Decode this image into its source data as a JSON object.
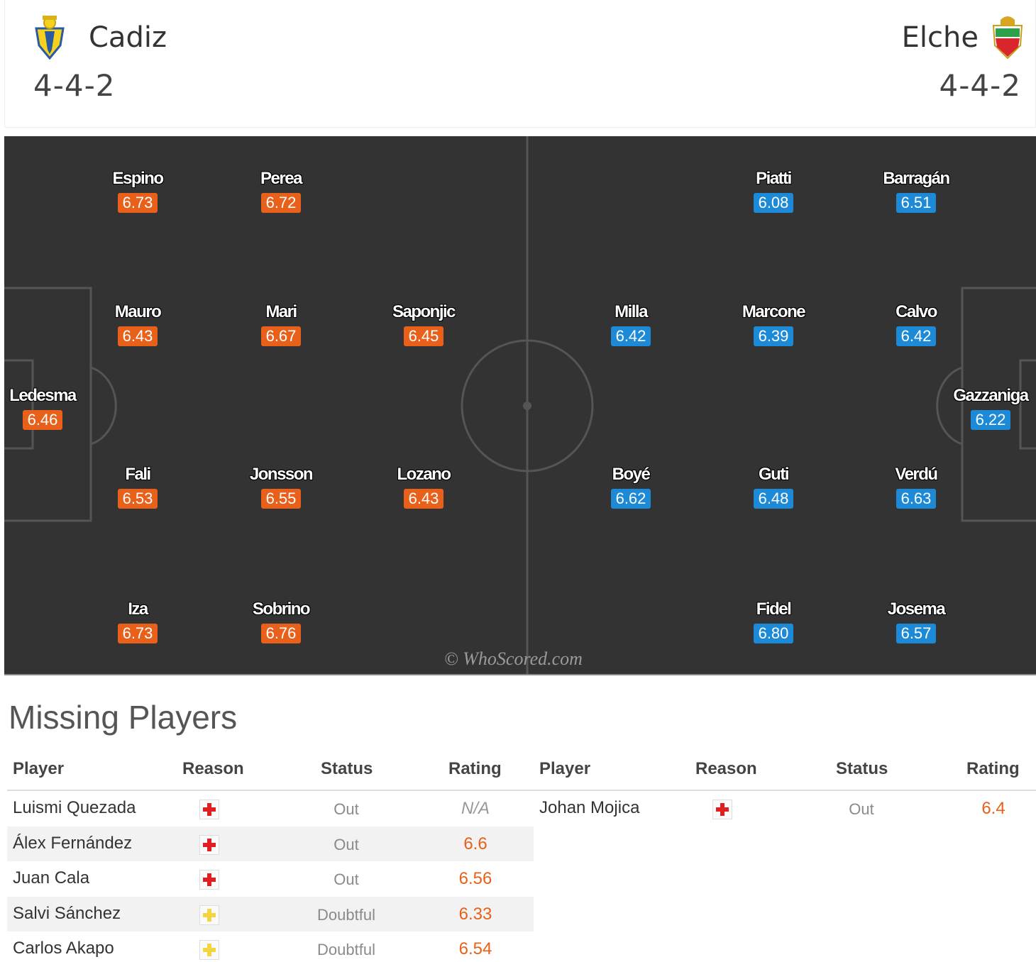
{
  "home": {
    "name": "Cadiz",
    "formation": "4-4-2",
    "crest_icon": "cadiz-crest-icon",
    "color": "#e8601a",
    "players": [
      {
        "name": "Ledesma",
        "rating": "6.46"
      },
      {
        "name": "Espino",
        "rating": "6.73"
      },
      {
        "name": "Mauro",
        "rating": "6.43"
      },
      {
        "name": "Fali",
        "rating": "6.53"
      },
      {
        "name": "Iza",
        "rating": "6.73"
      },
      {
        "name": "Perea",
        "rating": "6.72"
      },
      {
        "name": "Mari",
        "rating": "6.67"
      },
      {
        "name": "Jonsson",
        "rating": "6.55"
      },
      {
        "name": "Sobrino",
        "rating": "6.76"
      },
      {
        "name": "Saponjic",
        "rating": "6.45"
      },
      {
        "name": "Lozano",
        "rating": "6.43"
      }
    ]
  },
  "away": {
    "name": "Elche",
    "formation": "4-4-2",
    "crest_icon": "elche-crest-icon",
    "color": "#1c8ad7",
    "players": [
      {
        "name": "Gazzaniga",
        "rating": "6.22"
      },
      {
        "name": "Barragán",
        "rating": "6.51"
      },
      {
        "name": "Calvo",
        "rating": "6.42"
      },
      {
        "name": "Verdú",
        "rating": "6.63"
      },
      {
        "name": "Josema",
        "rating": "6.57"
      },
      {
        "name": "Piatti",
        "rating": "6.08"
      },
      {
        "name": "Marcone",
        "rating": "6.39"
      },
      {
        "name": "Guti",
        "rating": "6.48"
      },
      {
        "name": "Fidel",
        "rating": "6.80"
      },
      {
        "name": "Milla",
        "rating": "6.42"
      },
      {
        "name": "Boyé",
        "rating": "6.62"
      }
    ]
  },
  "watermark": "© WhoScored.com",
  "missing": {
    "title": "Missing Players",
    "columns": {
      "player": "Player",
      "reason": "Reason",
      "status": "Status",
      "rating": "Rating"
    },
    "home_rows": [
      {
        "player": "Luismi Quezada",
        "reason": "injury-red-cross-icon",
        "status": "Out",
        "rating": "N/A"
      },
      {
        "player": "Álex Fernández",
        "reason": "injury-red-cross-icon",
        "status": "Out",
        "rating": "6.6"
      },
      {
        "player": "Juan Cala",
        "reason": "injury-red-cross-icon",
        "status": "Out",
        "rating": "6.56"
      },
      {
        "player": "Salvi Sánchez",
        "reason": "doubtful-yellow-cross-icon",
        "status": "Doubtful",
        "rating": "6.33"
      },
      {
        "player": "Carlos Akapo",
        "reason": "doubtful-yellow-cross-icon",
        "status": "Doubtful",
        "rating": "6.54"
      }
    ],
    "away_rows": [
      {
        "player": "Johan Mojica",
        "reason": "injury-red-cross-icon",
        "status": "Out",
        "rating": "6.4"
      }
    ]
  },
  "colors": {
    "pitch": "#333333",
    "injury": "#e02020",
    "doubtful": "#f5d442"
  }
}
